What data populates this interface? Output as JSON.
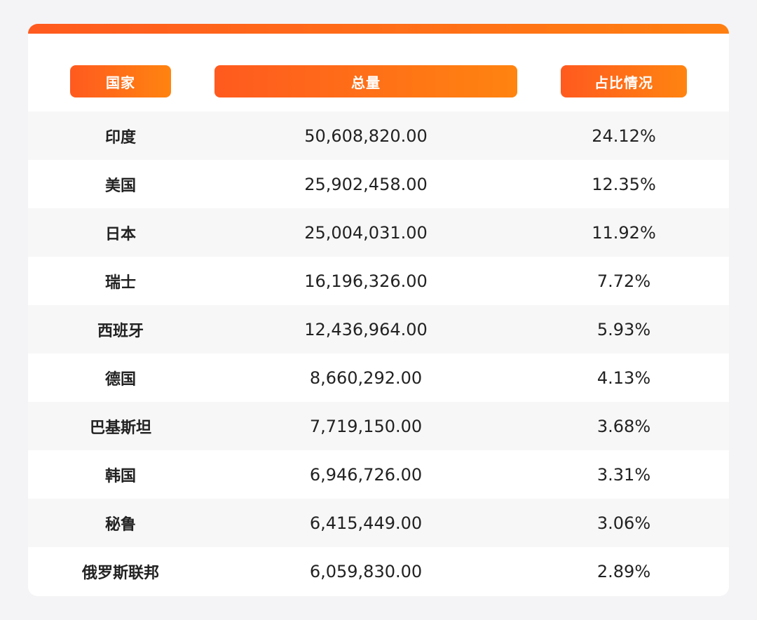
{
  "table": {
    "headers": {
      "country": "国家",
      "total": "总量",
      "share": "占比情况"
    },
    "rows": [
      {
        "country": "印度",
        "total": "50,608,820.00",
        "share": "24.12%"
      },
      {
        "country": "美国",
        "total": "25,902,458.00",
        "share": "12.35%"
      },
      {
        "country": "日本",
        "total": "25,004,031.00",
        "share": "11.92%"
      },
      {
        "country": "瑞士",
        "total": "16,196,326.00",
        "share": "7.72%"
      },
      {
        "country": "西班牙",
        "total": "12,436,964.00",
        "share": "5.93%"
      },
      {
        "country": "德国",
        "total": "8,660,292.00",
        "share": "4.13%"
      },
      {
        "country": "巴基斯坦",
        "total": "7,719,150.00",
        "share": "3.68%"
      },
      {
        "country": "韩国",
        "total": "6,946,726.00",
        "share": "3.31%"
      },
      {
        "country": "秘鲁",
        "total": "6,415,449.00",
        "share": "3.06%"
      },
      {
        "country": "俄罗斯联邦",
        "total": "6,059,830.00",
        "share": "2.89%"
      }
    ]
  },
  "colors": {
    "accent_start": "#ff5a1f",
    "accent_end": "#ff8410",
    "row_alt": "#f7f7f7",
    "text": "#222222"
  }
}
